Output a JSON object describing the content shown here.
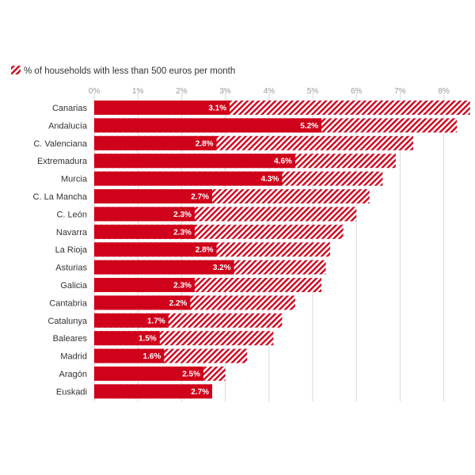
{
  "chart_data": {
    "type": "bar",
    "orientation": "horizontal",
    "stacked": false,
    "legend": {
      "label": "% of households with less than 500 euros per month",
      "placement": "top-left"
    },
    "x_ticks": [
      "0%",
      "1%",
      "2%",
      "3%",
      "4%",
      "5%",
      "6%",
      "7%",
      "8%"
    ],
    "xlim": [
      0,
      8.5
    ],
    "grid": true,
    "categories": [
      "Canarias",
      "Andalucía",
      "C. Valenciana",
      "Extremadura",
      "Murcia",
      "C. La Mancha",
      "C. León",
      "Navarra",
      "La Rioja",
      "Asturias",
      "Galicia",
      "Cantabria",
      "Catalunya",
      "Baleares",
      "Madrid",
      "Aragón",
      "Euskadi"
    ],
    "series": [
      {
        "values": [
          8.6,
          8.3,
          7.3,
          6.9,
          6.6,
          6.3,
          6.0,
          5.7,
          5.4,
          5.3,
          5.2,
          4.6,
          4.3,
          4.1,
          3.5,
          3.0,
          2.7
        ],
        "color": "#d0021b",
        "pattern": "hatched"
      },
      {
        "values": [
          3.1,
          5.2,
          2.8,
          4.6,
          4.3,
          2.7,
          2.3,
          2.3,
          2.8,
          3.2,
          2.3,
          2.2,
          1.7,
          1.5,
          1.6,
          2.5,
          2.7
        ],
        "labels": [
          "3.1%",
          "5.2%",
          "2.8%",
          "4.6%",
          "4.3%",
          "2.7%",
          "2.3%",
          "2.3%",
          "2.8%",
          "3.2%",
          "2.3%",
          "2.2%",
          "1.7%",
          "1.5%",
          "1.6%",
          "2.5%",
          "2.7%"
        ],
        "color": "#d0021b",
        "pattern": "solid"
      }
    ]
  }
}
